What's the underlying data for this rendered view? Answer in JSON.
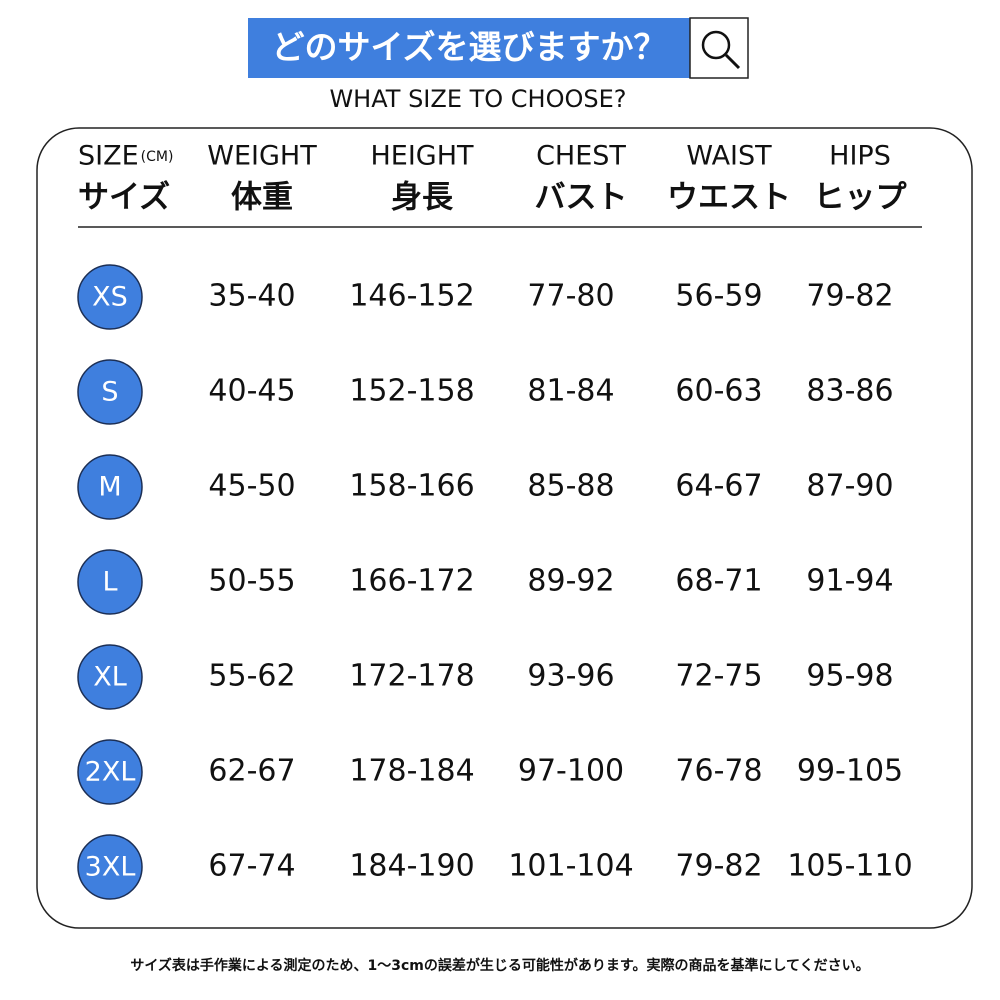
{
  "header": {
    "title": "どのサイズを選びますか？",
    "subtitle": "WHAT SIZE TO CHOOSE?"
  },
  "table": {
    "columns": [
      {
        "en": "SIZE",
        "unit": "(CM)",
        "jp": "サイズ"
      },
      {
        "en": "WEIGHT",
        "jp": "体重"
      },
      {
        "en": "HEIGHT",
        "jp": "身長"
      },
      {
        "en": "CHEST",
        "jp": "バスト"
      },
      {
        "en": "WAIST",
        "jp": "ウエスト"
      },
      {
        "en": "HIPS",
        "jp": "ヒップ"
      }
    ],
    "rows": [
      [
        "XS",
        "35-40",
        "146-152",
        "77-80",
        "56-59",
        "79-82"
      ],
      [
        "S",
        "40-45",
        "152-158",
        "81-84",
        "60-63",
        "83-86"
      ],
      [
        "M",
        "45-50",
        "158-166",
        "85-88",
        "64-67",
        "87-90"
      ],
      [
        "L",
        "50-55",
        "166-172",
        "89-92",
        "68-71",
        "91-94"
      ],
      [
        "XL",
        "55-62",
        "172-178",
        "93-96",
        "72-75",
        "95-98"
      ],
      [
        "2XL",
        "62-67",
        "178-184",
        "97-100",
        "76-78",
        "99-105"
      ],
      [
        "3XL",
        "67-74",
        "184-190",
        "101-104",
        "79-82",
        "105-110"
      ]
    ]
  },
  "footnote": "サイズ表は手作業による測定のため、1～3cmの誤差が生じる可能性があります。実際の商品を基準にしてください。"
}
